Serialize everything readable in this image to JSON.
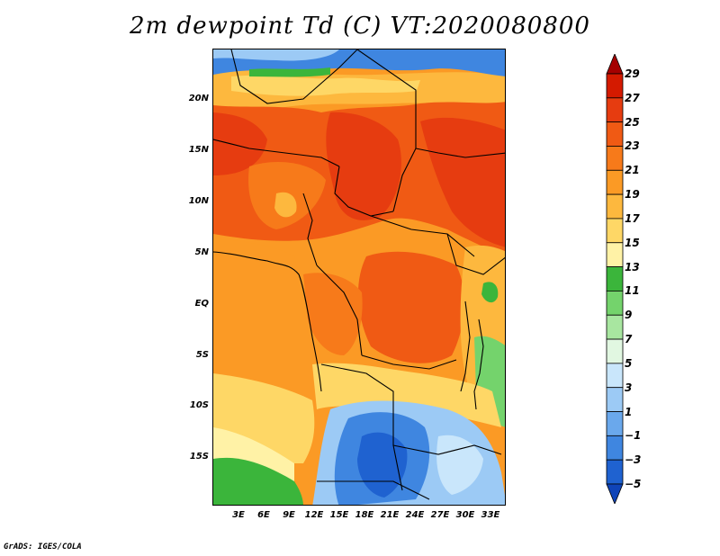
{
  "title": "2m dewpoint Td (C) VT:2020080800",
  "credit": "GrADS: IGES/COLA",
  "map": {
    "projection": "latlon",
    "lon_range": [
      0,
      34.5
    ],
    "lat_range": [
      -20,
      24.5
    ],
    "lat_ticks": [
      "20N",
      "15N",
      "10N",
      "5N",
      "EQ",
      "5S",
      "10S",
      "15S"
    ],
    "lon_ticks": [
      "3E",
      "6E",
      "9E",
      "12E",
      "15E",
      "18E",
      "21E",
      "24E",
      "27E",
      "30E",
      "33E"
    ]
  },
  "colorbar": {
    "labels": [
      "29",
      "27",
      "25",
      "23",
      "21",
      "19",
      "17",
      "15",
      "13",
      "11",
      "9",
      "7",
      "5",
      "3",
      "1",
      "−1",
      "−3",
      "−5"
    ],
    "colors": [
      "#a50000",
      "#d41a00",
      "#e63c10",
      "#f05a14",
      "#f77a1a",
      "#fb9a25",
      "#fdb83e",
      "#fed766",
      "#fff2a6",
      "#3bb53b",
      "#74d36c",
      "#a8e6a0",
      "#e1f7e1",
      "#c9e6fb",
      "#9ccaf5",
      "#6aa8ec",
      "#3f86e0",
      "#1f62d0",
      "#0f44b8"
    ]
  }
}
